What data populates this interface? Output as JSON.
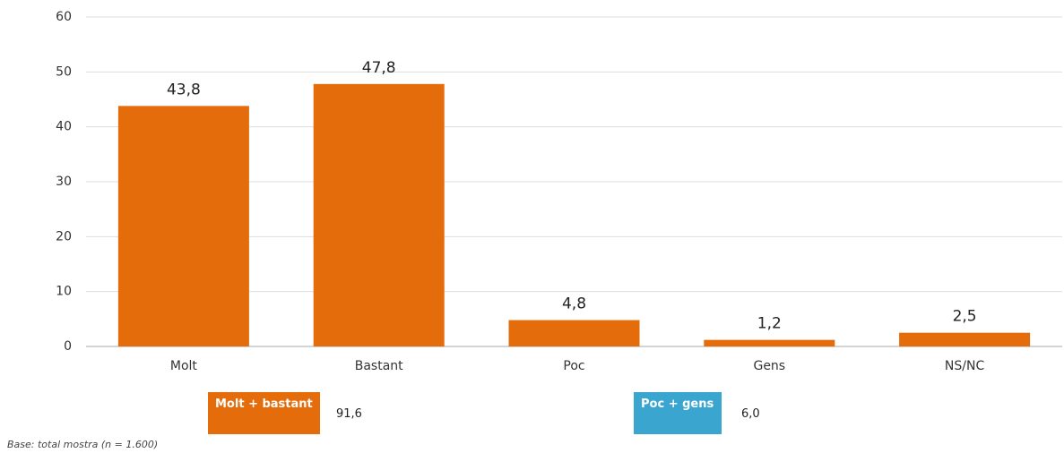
{
  "chart_data": {
    "type": "bar",
    "categories": [
      "Molt",
      "Bastant",
      "Poc",
      "Gens",
      "NS/NC"
    ],
    "values": [
      43.8,
      47.8,
      4.8,
      1.2,
      2.5
    ],
    "value_labels": [
      "43,8",
      "47,8",
      "4,8",
      "1,2",
      "2,5"
    ],
    "color": "#e46c0a",
    "ylim": [
      0,
      60
    ],
    "yticks": [
      0,
      10,
      20,
      30,
      40,
      50,
      60
    ],
    "grid": true
  },
  "summary": [
    {
      "label": "Molt + bastant",
      "value": "91,6",
      "color": "#e46c0a"
    },
    {
      "label": "Poc + gens",
      "value": "6,0",
      "color": "#3aa6d0"
    }
  ],
  "footnote": "Base: total mostra (n = 1.600)"
}
